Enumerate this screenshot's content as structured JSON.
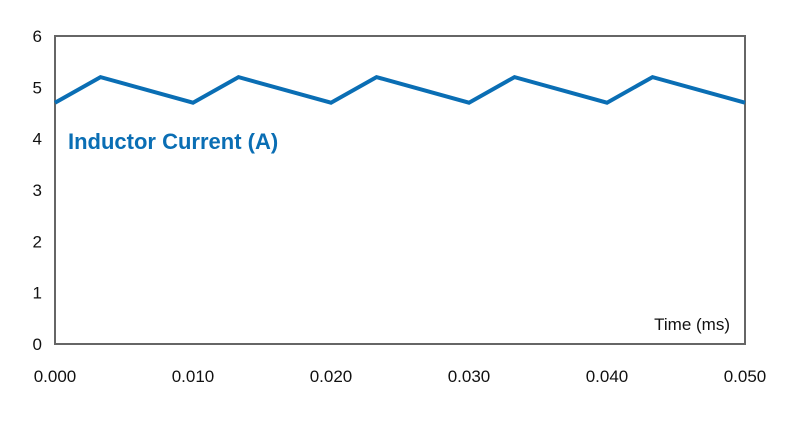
{
  "chart_data": {
    "type": "line",
    "title": "",
    "xlabel": "Time (ms)",
    "ylabel": "",
    "xlim": [
      0.0,
      0.05
    ],
    "ylim": [
      0,
      6
    ],
    "x_ticks": [
      "0.000",
      "0.010",
      "0.020",
      "0.030",
      "0.040",
      "0.050"
    ],
    "y_ticks": [
      "0",
      "1",
      "2",
      "3",
      "4",
      "5",
      "6"
    ],
    "grid": false,
    "legend": "none",
    "series": [
      {
        "name": "Inductor Current (A)",
        "color": "#0a6eb4",
        "x": [
          0.0,
          0.0033,
          0.01,
          0.0133,
          0.02,
          0.0233,
          0.03,
          0.0333,
          0.04,
          0.0433,
          0.05
        ],
        "y": [
          4.7,
          5.2,
          4.7,
          5.2,
          4.7,
          5.2,
          4.7,
          5.2,
          4.7,
          5.2,
          4.7
        ]
      }
    ]
  }
}
